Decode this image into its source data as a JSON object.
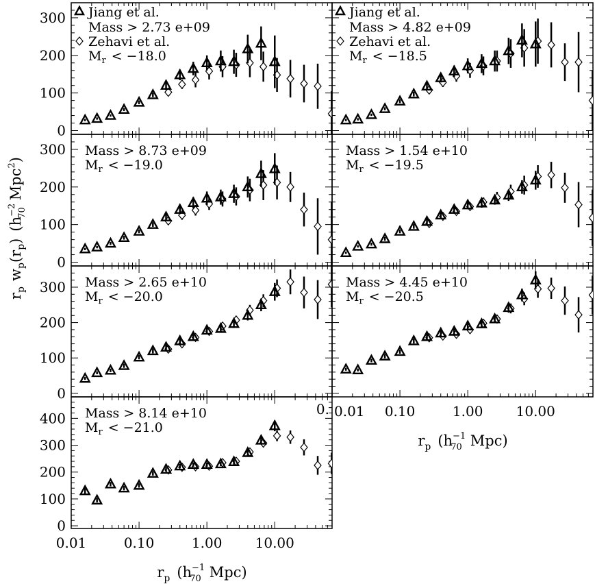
{
  "chart_data": {
    "type": "scatter",
    "xscale": "log",
    "xlim": [
      0.01,
      70
    ],
    "xticks": [
      0.01,
      0.1,
      1,
      10
    ],
    "xtick_labels": [
      "0.01",
      "0.10",
      "1.00",
      "10.00"
    ],
    "xlabel": "r_p (h_70^-1 Mpc)",
    "xlabel_parts": {
      "r": "r",
      "p": "p",
      "open": "(h",
      "sup": "−1",
      "sub": "70",
      "close": "Mpc)"
    },
    "ylabel": "r_p w_p(r_p) (h_70^-2 Mpc^2)",
    "ylabel_parts": {
      "a": "r",
      "b": "p",
      "c": "w",
      "d": "p",
      "e": "(r",
      "f": "p",
      "g": ")",
      "h": "(h",
      "sup": "−2",
      "sub": "70",
      "i": "Mpc",
      "j": "2",
      "k": ")"
    },
    "legend": [
      {
        "label": "Jiang et al.",
        "marker": "triangle"
      },
      {
        "label": "Zehavi et al.",
        "marker": "diamond"
      }
    ],
    "edge_label": "0.",
    "panels": [
      {
        "mass": "Mass > 2.73 e+09",
        "mr_sym": "M",
        "mr_sub": "r",
        "mr": "< −18.0",
        "ylim": [
          -10,
          340
        ],
        "yticks": [
          0,
          100,
          200,
          300
        ],
        "jiang": [
          [
            0.016,
            28,
            3
          ],
          [
            0.024,
            32,
            3
          ],
          [
            0.038,
            40,
            3
          ],
          [
            0.06,
            56,
            4
          ],
          [
            0.1,
            75,
            5
          ],
          [
            0.16,
            95,
            6
          ],
          [
            0.25,
            120,
            12
          ],
          [
            0.4,
            148,
            14
          ],
          [
            0.63,
            165,
            18
          ],
          [
            1.0,
            180,
            20
          ],
          [
            1.6,
            185,
            28
          ],
          [
            2.5,
            183,
            32
          ],
          [
            4.0,
            217,
            38
          ],
          [
            6.3,
            232,
            45
          ],
          [
            10,
            183,
            70
          ]
        ],
        "zehavi": [
          [
            0.27,
            102,
            10
          ],
          [
            0.43,
            123,
            12
          ],
          [
            0.68,
            135,
            20
          ],
          [
            1.08,
            158,
            22
          ],
          [
            1.7,
            170,
            28
          ],
          [
            2.7,
            175,
            32
          ],
          [
            4.3,
            180,
            38
          ],
          [
            6.8,
            170,
            40
          ],
          [
            10.8,
            148,
            45
          ],
          [
            17,
            138,
            50
          ],
          [
            27,
            125,
            50
          ],
          [
            43,
            118,
            60
          ],
          [
            69,
            45,
            60
          ]
        ]
      },
      {
        "mass": "Mass > 4.82 e+09",
        "mr_sym": "M",
        "mr_sub": "r",
        "mr": "< −18.5",
        "ylim": [
          -10,
          340
        ],
        "yticks": [
          0,
          100,
          200,
          300
        ],
        "jiang": [
          [
            0.016,
            28,
            3
          ],
          [
            0.024,
            30,
            3
          ],
          [
            0.038,
            42,
            3
          ],
          [
            0.06,
            58,
            4
          ],
          [
            0.1,
            78,
            5
          ],
          [
            0.16,
            97,
            6
          ],
          [
            0.25,
            118,
            10
          ],
          [
            0.4,
            140,
            12
          ],
          [
            0.63,
            158,
            15
          ],
          [
            1.0,
            172,
            20
          ],
          [
            1.6,
            178,
            25
          ],
          [
            2.5,
            185,
            28
          ],
          [
            4.0,
            212,
            35
          ],
          [
            6.3,
            240,
            45
          ],
          [
            10,
            230,
            60
          ]
        ],
        "zehavi": [
          [
            0.27,
            108,
            10
          ],
          [
            0.43,
            128,
            12
          ],
          [
            0.68,
            145,
            15
          ],
          [
            1.08,
            160,
            20
          ],
          [
            1.7,
            172,
            25
          ],
          [
            2.7,
            185,
            28
          ],
          [
            4.3,
            205,
            38
          ],
          [
            6.8,
            220,
            50
          ],
          [
            10.8,
            238,
            60
          ],
          [
            17,
            228,
            60
          ],
          [
            27,
            182,
            50
          ],
          [
            43,
            182,
            80
          ],
          [
            69,
            80,
            80
          ]
        ]
      },
      {
        "mass": "Mass > 8.73 e+09",
        "mr_sym": "M",
        "mr_sub": "r",
        "mr": "< −19.0",
        "ylim": [
          -10,
          340
        ],
        "yticks": [
          0,
          100,
          200,
          300
        ],
        "jiang": [
          [
            0.016,
            35,
            3
          ],
          [
            0.024,
            40,
            3
          ],
          [
            0.038,
            50,
            4
          ],
          [
            0.06,
            65,
            5
          ],
          [
            0.1,
            82,
            5
          ],
          [
            0.16,
            100,
            6
          ],
          [
            0.25,
            120,
            8
          ],
          [
            0.4,
            140,
            12
          ],
          [
            0.63,
            158,
            15
          ],
          [
            1.0,
            170,
            18
          ],
          [
            1.6,
            173,
            20
          ],
          [
            2.5,
            182,
            24
          ],
          [
            4.0,
            200,
            28
          ],
          [
            6.3,
            235,
            35
          ],
          [
            10,
            248,
            42
          ]
        ],
        "zehavi": [
          [
            0.27,
            110,
            10
          ],
          [
            0.43,
            125,
            12
          ],
          [
            0.68,
            138,
            14
          ],
          [
            1.08,
            155,
            16
          ],
          [
            1.7,
            168,
            20
          ],
          [
            2.7,
            175,
            24
          ],
          [
            4.3,
            192,
            30
          ],
          [
            6.8,
            205,
            40
          ],
          [
            10.8,
            212,
            45
          ],
          [
            17,
            200,
            40
          ],
          [
            27,
            140,
            45
          ],
          [
            43,
            95,
            75
          ],
          [
            69,
            60,
            100
          ]
        ]
      },
      {
        "mass": "Mass > 1.54 e+10",
        "mr_sym": "M",
        "mr_sub": "r",
        "mr": "< −19.5",
        "ylim": [
          -10,
          340
        ],
        "yticks": [
          0,
          100,
          200,
          300
        ],
        "jiang": [
          [
            0.016,
            25,
            3
          ],
          [
            0.024,
            42,
            3
          ],
          [
            0.038,
            48,
            4
          ],
          [
            0.06,
            62,
            5
          ],
          [
            0.1,
            82,
            5
          ],
          [
            0.16,
            95,
            6
          ],
          [
            0.25,
            108,
            8
          ],
          [
            0.4,
            125,
            10
          ],
          [
            0.63,
            140,
            10
          ],
          [
            1.0,
            152,
            10
          ],
          [
            1.6,
            157,
            12
          ],
          [
            2.5,
            165,
            12
          ],
          [
            4.0,
            178,
            15
          ],
          [
            6.3,
            200,
            18
          ],
          [
            10,
            218,
            25
          ]
        ],
        "zehavi": [
          [
            0.27,
            103,
            8
          ],
          [
            0.43,
            122,
            8
          ],
          [
            0.68,
            135,
            10
          ],
          [
            1.08,
            148,
            10
          ],
          [
            1.7,
            160,
            12
          ],
          [
            2.7,
            172,
            15
          ],
          [
            4.3,
            188,
            18
          ],
          [
            6.8,
            205,
            25
          ],
          [
            10.8,
            228,
            30
          ],
          [
            17,
            232,
            35
          ],
          [
            27,
            198,
            40
          ],
          [
            43,
            153,
            60
          ],
          [
            69,
            118,
            75
          ]
        ]
      },
      {
        "mass": "Mass > 2.65 e+10",
        "mr_sym": "M",
        "mr_sub": "r",
        "mr": "< −20.0",
        "ylim": [
          -10,
          360
        ],
        "yticks": [
          0,
          100,
          200,
          300
        ],
        "jiang": [
          [
            0.016,
            42,
            4
          ],
          [
            0.024,
            58,
            4
          ],
          [
            0.038,
            65,
            5
          ],
          [
            0.06,
            78,
            6
          ],
          [
            0.1,
            102,
            6
          ],
          [
            0.16,
            120,
            7
          ],
          [
            0.25,
            130,
            8
          ],
          [
            0.4,
            148,
            8
          ],
          [
            0.63,
            160,
            8
          ],
          [
            1.0,
            178,
            8
          ],
          [
            1.6,
            183,
            10
          ],
          [
            2.5,
            197,
            12
          ],
          [
            4.0,
            220,
            14
          ],
          [
            6.3,
            250,
            18
          ],
          [
            10,
            287,
            25
          ]
        ],
        "zehavi": [
          [
            0.27,
            125,
            8
          ],
          [
            0.43,
            140,
            8
          ],
          [
            0.68,
            158,
            8
          ],
          [
            1.08,
            175,
            8
          ],
          [
            1.7,
            190,
            10
          ],
          [
            2.7,
            207,
            12
          ],
          [
            4.3,
            235,
            15
          ],
          [
            6.8,
            262,
            18
          ],
          [
            10.8,
            297,
            25
          ],
          [
            17,
            315,
            35
          ],
          [
            27,
            285,
            45
          ],
          [
            43,
            265,
            55
          ],
          [
            69,
            308,
            65
          ]
        ]
      },
      {
        "mass": "Mass > 4.45 e+10",
        "mr_sym": "M",
        "mr_sub": "r",
        "mr": "< −20.5",
        "ylim": [
          -10,
          360
        ],
        "yticks": [
          0,
          100,
          200,
          300
        ],
        "jiang": [
          [
            0.016,
            68,
            4
          ],
          [
            0.024,
            66,
            4
          ],
          [
            0.038,
            93,
            5
          ],
          [
            0.06,
            105,
            6
          ],
          [
            0.1,
            118,
            6
          ],
          [
            0.16,
            148,
            7
          ],
          [
            0.25,
            160,
            8
          ],
          [
            0.4,
            170,
            8
          ],
          [
            0.63,
            175,
            8
          ],
          [
            1.0,
            190,
            8
          ],
          [
            1.6,
            196,
            10
          ],
          [
            2.5,
            210,
            10
          ],
          [
            4.0,
            242,
            14
          ],
          [
            6.3,
            278,
            18
          ],
          [
            10,
            320,
            25
          ]
        ],
        "zehavi": [
          [
            0.27,
            157,
            8
          ],
          [
            0.43,
            162,
            8
          ],
          [
            0.68,
            167,
            8
          ],
          [
            1.08,
            180,
            8
          ],
          [
            1.7,
            198,
            10
          ],
          [
            2.7,
            210,
            12
          ],
          [
            4.3,
            240,
            14
          ],
          [
            6.8,
            267,
            18
          ],
          [
            10.8,
            295,
            25
          ],
          [
            17,
            297,
            30
          ],
          [
            27,
            262,
            40
          ],
          [
            43,
            222,
            50
          ],
          [
            69,
            278,
            55
          ]
        ]
      },
      {
        "mass": "Mass > 8.14 e+10",
        "mr_sym": "M",
        "mr_sub": "r",
        "mr": "< −21.0",
        "ylim": [
          -10,
          480
        ],
        "yticks": [
          0,
          100,
          200,
          300,
          400
        ],
        "jiang": [
          [
            0.016,
            130,
            10
          ],
          [
            0.024,
            95,
            8
          ],
          [
            0.038,
            155,
            8
          ],
          [
            0.06,
            140,
            8
          ],
          [
            0.1,
            150,
            8
          ],
          [
            0.16,
            195,
            8
          ],
          [
            0.25,
            210,
            8
          ],
          [
            0.4,
            222,
            8
          ],
          [
            0.63,
            228,
            8
          ],
          [
            1.0,
            228,
            8
          ],
          [
            1.6,
            230,
            8
          ],
          [
            2.5,
            238,
            10
          ],
          [
            4.0,
            272,
            12
          ],
          [
            6.3,
            318,
            15
          ],
          [
            10,
            372,
            20
          ]
        ],
        "zehavi": [
          [
            0.27,
            208,
            8
          ],
          [
            0.43,
            218,
            8
          ],
          [
            0.68,
            220,
            8
          ],
          [
            1.08,
            222,
            8
          ],
          [
            1.7,
            235,
            8
          ],
          [
            2.7,
            240,
            10
          ],
          [
            4.3,
            275,
            12
          ],
          [
            6.8,
            308,
            15
          ],
          [
            10.8,
            335,
            20
          ],
          [
            17,
            330,
            25
          ],
          [
            27,
            292,
            30
          ],
          [
            43,
            225,
            35
          ],
          [
            69,
            232,
            40
          ]
        ]
      }
    ]
  }
}
